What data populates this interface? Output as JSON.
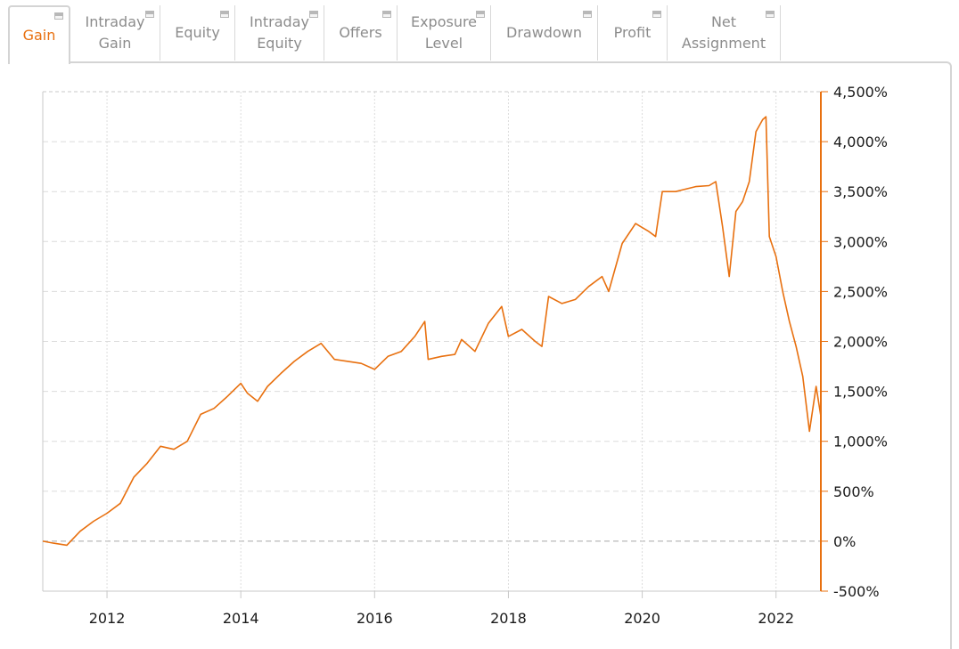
{
  "tabs": [
    {
      "label": "Gain",
      "active": true
    },
    {
      "label": "Intraday\nGain",
      "active": false
    },
    {
      "label": "Equity",
      "active": false
    },
    {
      "label": "Intraday\nEquity",
      "active": false
    },
    {
      "label": "Offers",
      "active": false
    },
    {
      "label": "Exposure\nLevel",
      "active": false
    },
    {
      "label": "Drawdown",
      "active": false
    },
    {
      "label": "Profit",
      "active": false
    },
    {
      "label": "Net\nAssignment",
      "active": false
    }
  ],
  "colors": {
    "line": "#e8700f",
    "active_tab": "#e8700f",
    "tab_text": "#8c8c8c",
    "grid": "#dcdcdc"
  },
  "chart_data": {
    "type": "line",
    "title": "",
    "xlabel": "",
    "ylabel": "",
    "x_ticks": [
      "2012",
      "2014",
      "2016",
      "2018",
      "2020",
      "2022"
    ],
    "y_ticks": [
      "4,500%",
      "4,000%",
      "3,500%",
      "3,000%",
      "2,500%",
      "2,000%",
      "1,500%",
      "1,000%",
      "500%",
      "0%",
      "-500%"
    ],
    "xlim": [
      2011.04,
      2022.67
    ],
    "ylim": [
      -500,
      4500
    ],
    "y_axis_position": "right",
    "grid": true,
    "series": [
      {
        "x": [
          2011.04,
          2011.2,
          2011.4,
          2011.6,
          2011.8,
          2012.0,
          2012.2,
          2012.4,
          2012.6,
          2012.8,
          2013.0,
          2013.2,
          2013.4,
          2013.6,
          2013.8,
          2014.0,
          2014.1,
          2014.25,
          2014.4,
          2014.6,
          2014.8,
          2015.0,
          2015.2,
          2015.4,
          2015.6,
          2015.8,
          2016.0,
          2016.2,
          2016.4,
          2016.6,
          2016.75,
          2016.8,
          2017.0,
          2017.2,
          2017.3,
          2017.5,
          2017.7,
          2017.9,
          2018.0,
          2018.2,
          2018.4,
          2018.5,
          2018.6,
          2018.8,
          2019.0,
          2019.2,
          2019.4,
          2019.5,
          2019.7,
          2019.9,
          2020.1,
          2020.2,
          2020.3,
          2020.5,
          2020.8,
          2021.0,
          2021.1,
          2021.2,
          2021.3,
          2021.4,
          2021.5,
          2021.6,
          2021.7,
          2021.8,
          2021.85,
          2021.9,
          2022.0,
          2022.1,
          2022.2,
          2022.3,
          2022.4,
          2022.5,
          2022.6,
          2022.67
        ],
        "y": [
          0,
          -20,
          -40,
          100,
          200,
          280,
          380,
          640,
          780,
          950,
          920,
          1000,
          1270,
          1330,
          1450,
          1580,
          1480,
          1400,
          1550,
          1680,
          1800,
          1900,
          1980,
          1820,
          1800,
          1780,
          1720,
          1850,
          1900,
          2050,
          2200,
          1820,
          1850,
          1870,
          2020,
          1900,
          2180,
          2350,
          2050,
          2120,
          2000,
          1950,
          2450,
          2380,
          2420,
          2550,
          2650,
          2500,
          2980,
          3180,
          3100,
          3050,
          3500,
          3500,
          3550,
          3560,
          3600,
          3150,
          2650,
          3300,
          3400,
          3600,
          4100,
          4220,
          4250,
          3050,
          2850,
          2500,
          2200,
          1950,
          1650,
          1100,
          1550,
          1250
        ]
      }
    ]
  }
}
